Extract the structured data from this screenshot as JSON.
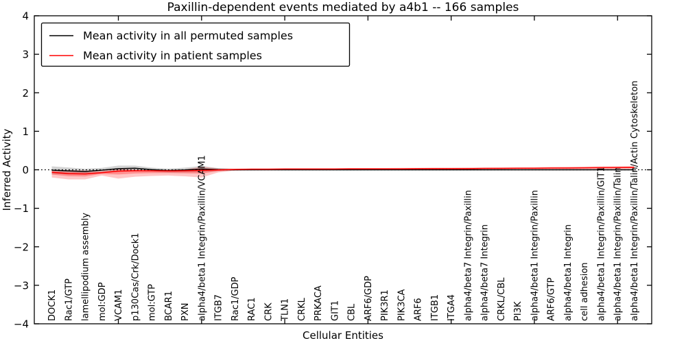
{
  "chart_data": {
    "type": "line",
    "title": "Paxillin-dependent events mediated by a4b1 -- 166 samples",
    "xlabel": "Cellular Entities",
    "ylabel": "Inferred Activity",
    "ylim": [
      -4,
      4
    ],
    "ytick_values": [
      4,
      3,
      2,
      1,
      0,
      -1,
      -2,
      -3,
      -4
    ],
    "ytick_labels": [
      "4",
      "3",
      "2",
      "1",
      "0",
      "−1",
      "−2",
      "−3",
      "−4"
    ],
    "x_tick_indices": [
      4,
      9,
      14,
      19,
      24,
      29,
      34
    ],
    "grid": false,
    "legend_position": "upper left",
    "zero_line": {
      "style": "dotted",
      "color": "#000000",
      "y": 0
    },
    "categories": [
      "DOCK1",
      "Rac1/GTP",
      "lamellipodium assembly",
      "mol:GDP",
      "VCAM1",
      "p130Cas/Crk/Dock1",
      "mol:GTP",
      "BCAR1",
      "PXN",
      "alpha4/beta1 Integrin/Paxillin/VCAM1",
      "ITGB7",
      "Rac1/GDP",
      "RAC1",
      "CRK",
      "TLN1",
      "CRKL",
      "PRKACA",
      "GIT1",
      "CBL",
      "ARF6/GDP",
      "PIK3R1",
      "PIK3CA",
      "ARF6",
      "ITGB1",
      "ITGA4",
      "alpha4/beta7 Integrin/Paxillin",
      "alpha4/beta7 Integrin",
      "CRKL/CBL",
      "PI3K",
      "alpha4/beta1 Integrin/Paxillin",
      "ARF6/GTP",
      "alpha4/beta1 Integrin",
      "cell adhesion",
      "alpha4/beta1 Integrin/Paxillin/GIT1",
      "alpha4/beta1 Integrin/Paxillin/Talin",
      "alpha4/beta1 Integrin/Paxillin/Talin/Actin Cytoskeleton"
    ],
    "series": [
      {
        "name": "Mean activity in all permuted samples",
        "color": "#000000",
        "values": [
          -0.01,
          -0.03,
          -0.045,
          -0.01,
          0.03,
          0.04,
          0.005,
          -0.02,
          -0.005,
          0.02,
          0.005,
          0,
          0,
          0,
          0,
          0,
          0,
          0,
          0,
          0,
          0,
          0,
          0,
          0,
          0,
          0,
          0,
          0,
          0,
          0,
          0,
          0,
          0,
          0,
          0,
          0
        ]
      },
      {
        "name": "Mean activity in patient samples",
        "color": "#ff0000",
        "values": [
          -0.065,
          -0.1,
          -0.11,
          -0.075,
          -0.035,
          -0.025,
          -0.025,
          -0.03,
          -0.025,
          -0.015,
          -0.005,
          0.01,
          0.015,
          0.015,
          0.02,
          0.02,
          0.02,
          0.02,
          0.025,
          0.025,
          0.025,
          0.025,
          0.03,
          0.03,
          0.03,
          0.03,
          0.035,
          0.035,
          0.04,
          0.04,
          0.045,
          0.045,
          0.05,
          0.055,
          0.055,
          0.06
        ]
      }
    ],
    "bands": [
      {
        "name": "permuted-samples-std-band",
        "color": "#9e9e9e",
        "opacity": 0.45,
        "upper": [
          0.09,
          0.06,
          0.025,
          0.05,
          0.11,
          0.11,
          0.055,
          0.03,
          0.055,
          0.1,
          0.045,
          0.025,
          0.02,
          0.015,
          0.015,
          0.015,
          0.015,
          0.015,
          0.015,
          0.015,
          0.015,
          0.015,
          0.015,
          0.015,
          0.015,
          0.015,
          0.015,
          0.015,
          0.015,
          0.015,
          0.015,
          0.015,
          0.015,
          0.015,
          0.015,
          0.015
        ],
        "lower": [
          -0.11,
          -0.12,
          -0.115,
          -0.07,
          -0.05,
          -0.03,
          -0.045,
          -0.07,
          -0.065,
          -0.06,
          -0.035,
          -0.025,
          -0.02,
          -0.015,
          -0.015,
          -0.015,
          -0.015,
          -0.015,
          -0.015,
          -0.015,
          -0.015,
          -0.015,
          -0.015,
          -0.015,
          -0.015,
          -0.015,
          -0.015,
          -0.015,
          -0.015,
          -0.015,
          -0.015,
          -0.015,
          -0.015,
          -0.015,
          -0.015,
          -0.015
        ]
      },
      {
        "name": "patient-samples-std-band",
        "color": "#ff0000",
        "opacity": 0.22,
        "upper": [
          -0.005,
          -0.01,
          -0.015,
          -0.03,
          0.03,
          0.01,
          -0.02,
          0,
          0.01,
          0.08,
          0.035,
          0.03,
          0.035,
          0.035,
          0.04,
          0.04,
          0.04,
          0.04,
          0.045,
          0.045,
          0.045,
          0.05,
          0.05,
          0.055,
          0.055,
          0.06,
          0.06,
          0.065,
          0.065,
          0.07,
          0.075,
          0.08,
          0.085,
          0.09,
          0.095,
          0.1
        ],
        "lower": [
          -0.2,
          -0.25,
          -0.25,
          -0.15,
          -0.23,
          -0.18,
          -0.16,
          -0.15,
          -0.17,
          -0.2,
          -0.07,
          -0.02,
          -0.005,
          0,
          0,
          0,
          0,
          0.005,
          0.005,
          0.005,
          0.005,
          0.01,
          0.01,
          0.01,
          0.01,
          0.01,
          0.015,
          0.015,
          0.015,
          0.015,
          0.02,
          0.02,
          0.02,
          0.02,
          0.02,
          0.025
        ]
      }
    ]
  },
  "legend": {
    "items": [
      {
        "label": "Mean activity in all permuted samples",
        "color": "#000000"
      },
      {
        "label": "Mean activity in patient samples",
        "color": "#ff0000"
      }
    ]
  }
}
